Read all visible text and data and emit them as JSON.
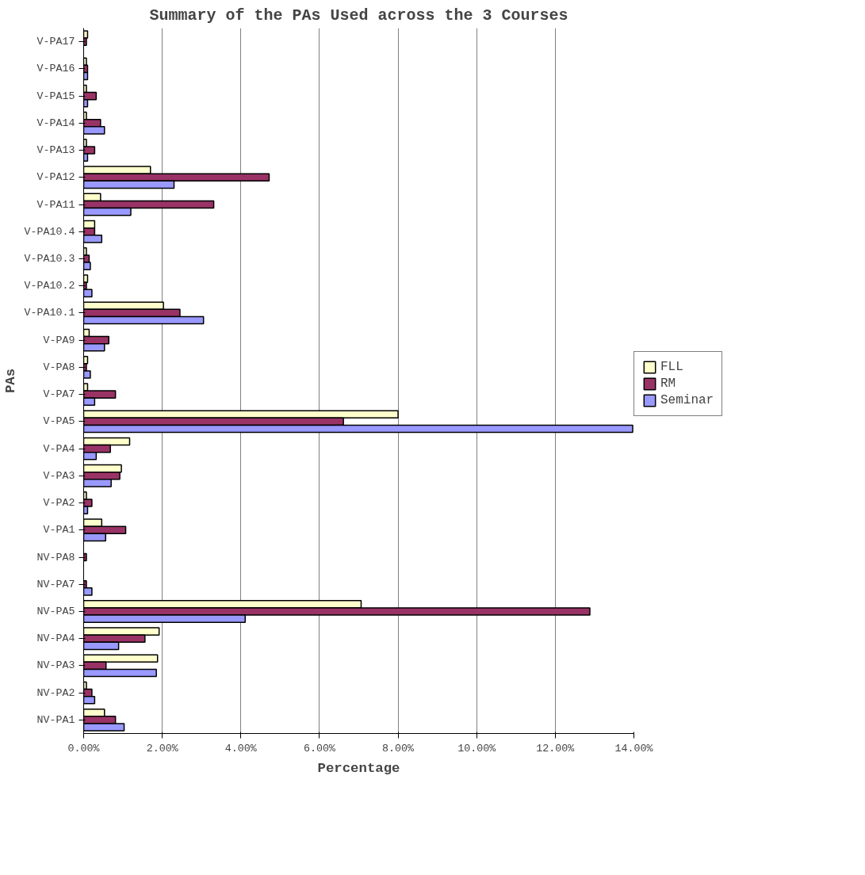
{
  "chart_data": {
    "type": "bar",
    "orientation": "horizontal",
    "title": "Summary of the PAs Used across the 3 Courses",
    "xlabel": "Percentage",
    "ylabel": "PAs",
    "categories": [
      "V-PA17",
      "V-PA16",
      "V-PA15",
      "V-PA14",
      "V-PA13",
      "V-PA12",
      "V-PA11",
      "V-PA10.4",
      "V-PA10.3",
      "V-PA10.2",
      "V-PA10.1",
      "V-PA9",
      "V-PA8",
      "V-PA7",
      "V-PA5",
      "V-PA4",
      "V-PA3",
      "V-PA2",
      "V-PA1",
      "NV-PA8",
      "NV-PA7",
      "NV-PA5",
      "NV-PA4",
      "NV-PA3",
      "NV-PA2",
      "NV-PA1"
    ],
    "series": [
      {
        "name": "FLL",
        "color": "#ffffcc",
        "values": [
          0.1,
          0.07,
          0.07,
          0.07,
          0.07,
          1.7,
          0.43,
          0.28,
          0.07,
          0.1,
          2.03,
          0.14,
          0.1,
          0.1,
          8.0,
          1.17,
          0.96,
          0.07,
          0.46,
          null,
          null,
          7.06,
          1.92,
          1.88,
          0.07,
          0.53
        ]
      },
      {
        "name": "RM",
        "color": "#993366",
        "values": [
          0.07,
          0.1,
          0.32,
          0.43,
          0.28,
          4.72,
          3.31,
          0.28,
          0.14,
          0.07,
          2.45,
          0.64,
          0.07,
          0.81,
          6.61,
          0.68,
          0.92,
          0.21,
          1.07,
          0.07,
          0.07,
          12.88,
          1.56,
          0.57,
          0.21,
          0.81
        ]
      },
      {
        "name": "Seminar",
        "color": "#9999ff",
        "values": [
          null,
          0.1,
          0.1,
          0.53,
          0.1,
          2.3,
          1.2,
          0.46,
          0.17,
          0.21,
          3.05,
          0.53,
          0.17,
          0.28,
          13.97,
          0.32,
          0.7,
          0.1,
          0.56,
          null,
          0.21,
          4.11,
          0.89,
          1.85,
          0.28,
          1.03
        ]
      }
    ],
    "xlim": [
      0,
      14
    ],
    "xticks": [
      {
        "value": 0,
        "label": "0.00%"
      },
      {
        "value": 2,
        "label": "2.00%"
      },
      {
        "value": 4,
        "label": "4.00%"
      },
      {
        "value": 6,
        "label": "6.00%"
      },
      {
        "value": 8,
        "label": "8.00%"
      },
      {
        "value": 10,
        "label": "10.00%"
      },
      {
        "value": 12,
        "label": "12.00%"
      },
      {
        "value": 14,
        "label": "14.00%"
      }
    ],
    "grid": "x",
    "legend": "right"
  }
}
